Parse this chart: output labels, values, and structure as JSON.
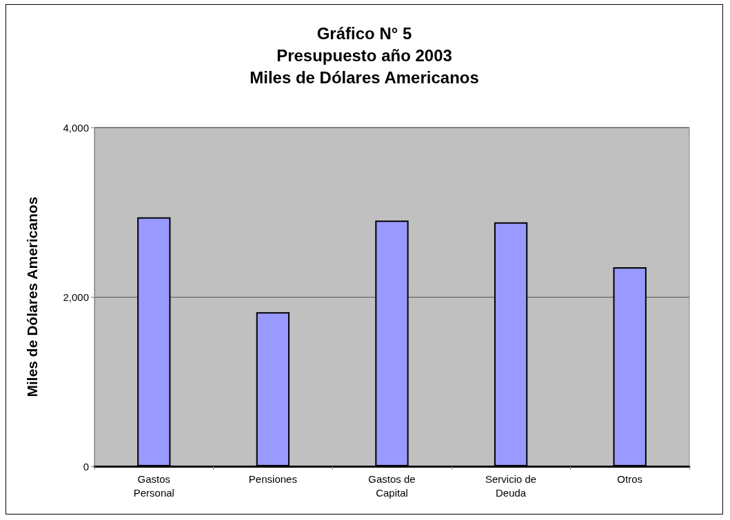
{
  "chart_data": {
    "type": "bar",
    "title": "Gráfico N° 5\nPresupuesto año 2003\nMiles de Dólares Americanos",
    "ylabel": "Miles de Dólares Americanos",
    "categories": [
      "Gastos\nPersonal",
      "Pensiones",
      "Gastos de\nCapital",
      "Servicio de\nDeuda",
      "Otros"
    ],
    "values": [
      2940,
      1820,
      2900,
      2880,
      2350
    ],
    "color": "#9999ff",
    "ylim": [
      0,
      4000
    ],
    "yticks": [
      0,
      {
        "value": 2000,
        "label": "2,000"
      },
      {
        "value": 4000,
        "label": "4,000"
      }
    ],
    "grid": "y"
  }
}
